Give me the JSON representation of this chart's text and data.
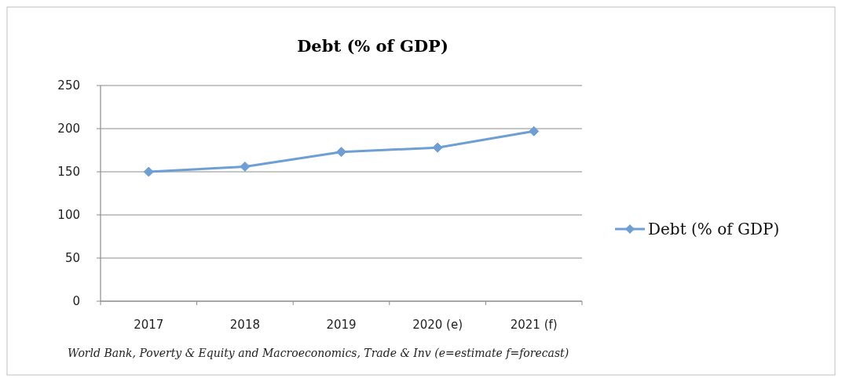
{
  "chart_data": {
    "type": "line",
    "title": "Debt (% of GDP)",
    "categories": [
      "2017",
      "2018",
      "2019",
      "2020 (e)",
      "2021 (f)"
    ],
    "series": [
      {
        "name": "Debt (% of GDP)",
        "color": "#6d9fd5",
        "values": [
          150,
          156,
          173,
          178,
          197
        ]
      }
    ],
    "ylim": [
      0,
      250
    ],
    "yticks": [
      0,
      50,
      100,
      150,
      200,
      250
    ],
    "grid": "y",
    "legend": "right",
    "marker": "diamond",
    "line_style": "solid",
    "annotations": [
      "World Bank, Poverty & Equity and Macroeconomics, Trade & Inv (e=estimate  f=forecast)"
    ]
  }
}
